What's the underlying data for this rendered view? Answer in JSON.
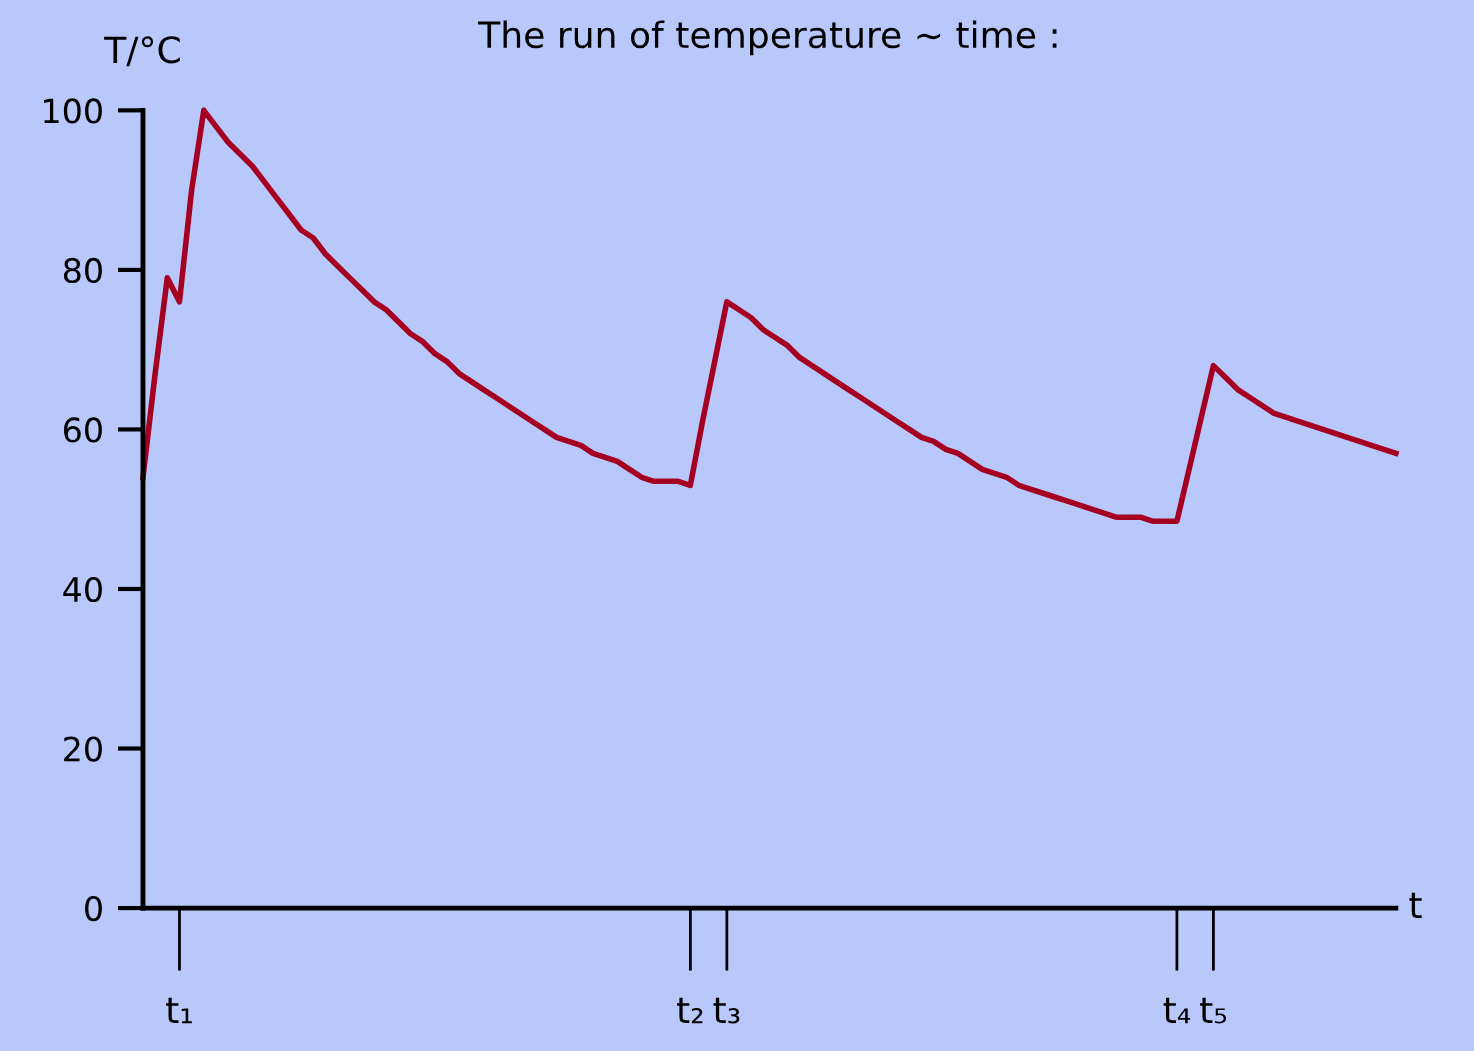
{
  "chart_data": {
    "type": "line",
    "title": "The run of temperature ~ time :",
    "ylabel": "T/°C",
    "xlabel": "t",
    "categories": [
      null,
      null,
      null,
      "t₁",
      null,
      null,
      null,
      null,
      null,
      null,
      null,
      null,
      null,
      null,
      null,
      null,
      null,
      null,
      null,
      null,
      null,
      null,
      null,
      null,
      null,
      null,
      null,
      null,
      null,
      null,
      null,
      null,
      null,
      null,
      null,
      null,
      null,
      null,
      null,
      null,
      null,
      null,
      null,
      null,
      null,
      "t₂",
      null,
      null,
      "t₃",
      null,
      null,
      null,
      null,
      null,
      null,
      null,
      null,
      null,
      null,
      null,
      null,
      null,
      null,
      null,
      null,
      null,
      null,
      null,
      null,
      null,
      null,
      null,
      null,
      null,
      null,
      null,
      null,
      null,
      null,
      null,
      null,
      null,
      null,
      null,
      null,
      "t₄",
      null,
      null,
      "t₅",
      null,
      null,
      null,
      null,
      null,
      null,
      null,
      null,
      null,
      null,
      null,
      null,
      null,
      null,
      null
    ],
    "series": [
      {
        "color": "#a50021",
        "values": [
          54,
          67,
          79,
          76,
          90,
          100,
          98,
          96,
          94.5,
          93,
          91,
          89,
          87,
          85,
          84,
          82,
          80.5,
          79,
          77.5,
          76,
          75,
          73.5,
          72,
          71,
          69.5,
          68.5,
          67,
          66,
          65,
          64,
          63,
          62,
          61,
          60,
          59,
          58.5,
          58,
          57,
          56.5,
          56,
          55,
          54,
          53.5,
          53.5,
          53.5,
          53,
          61,
          68.5,
          76,
          75,
          74,
          72.5,
          71.5,
          70.5,
          69,
          68,
          67,
          66,
          65,
          64,
          63,
          62,
          61,
          60,
          59,
          58.5,
          57.5,
          57,
          56,
          55,
          54.5,
          54,
          53,
          52.5,
          52,
          51.5,
          51,
          50.5,
          50,
          49.5,
          49,
          49,
          49,
          48.5,
          48.5,
          48.5,
          55,
          61.5,
          68,
          66.5,
          65,
          64,
          63,
          62,
          61.5,
          61,
          60.5,
          60,
          59.5,
          59,
          58.5,
          58,
          57.5,
          57
        ]
      }
    ],
    "ylim": [
      0,
      100
    ],
    "yticks": [
      0,
      20,
      40,
      60,
      80,
      100
    ],
    "grid": false,
    "legend": false,
    "marker": "none",
    "line_style": "solid"
  }
}
